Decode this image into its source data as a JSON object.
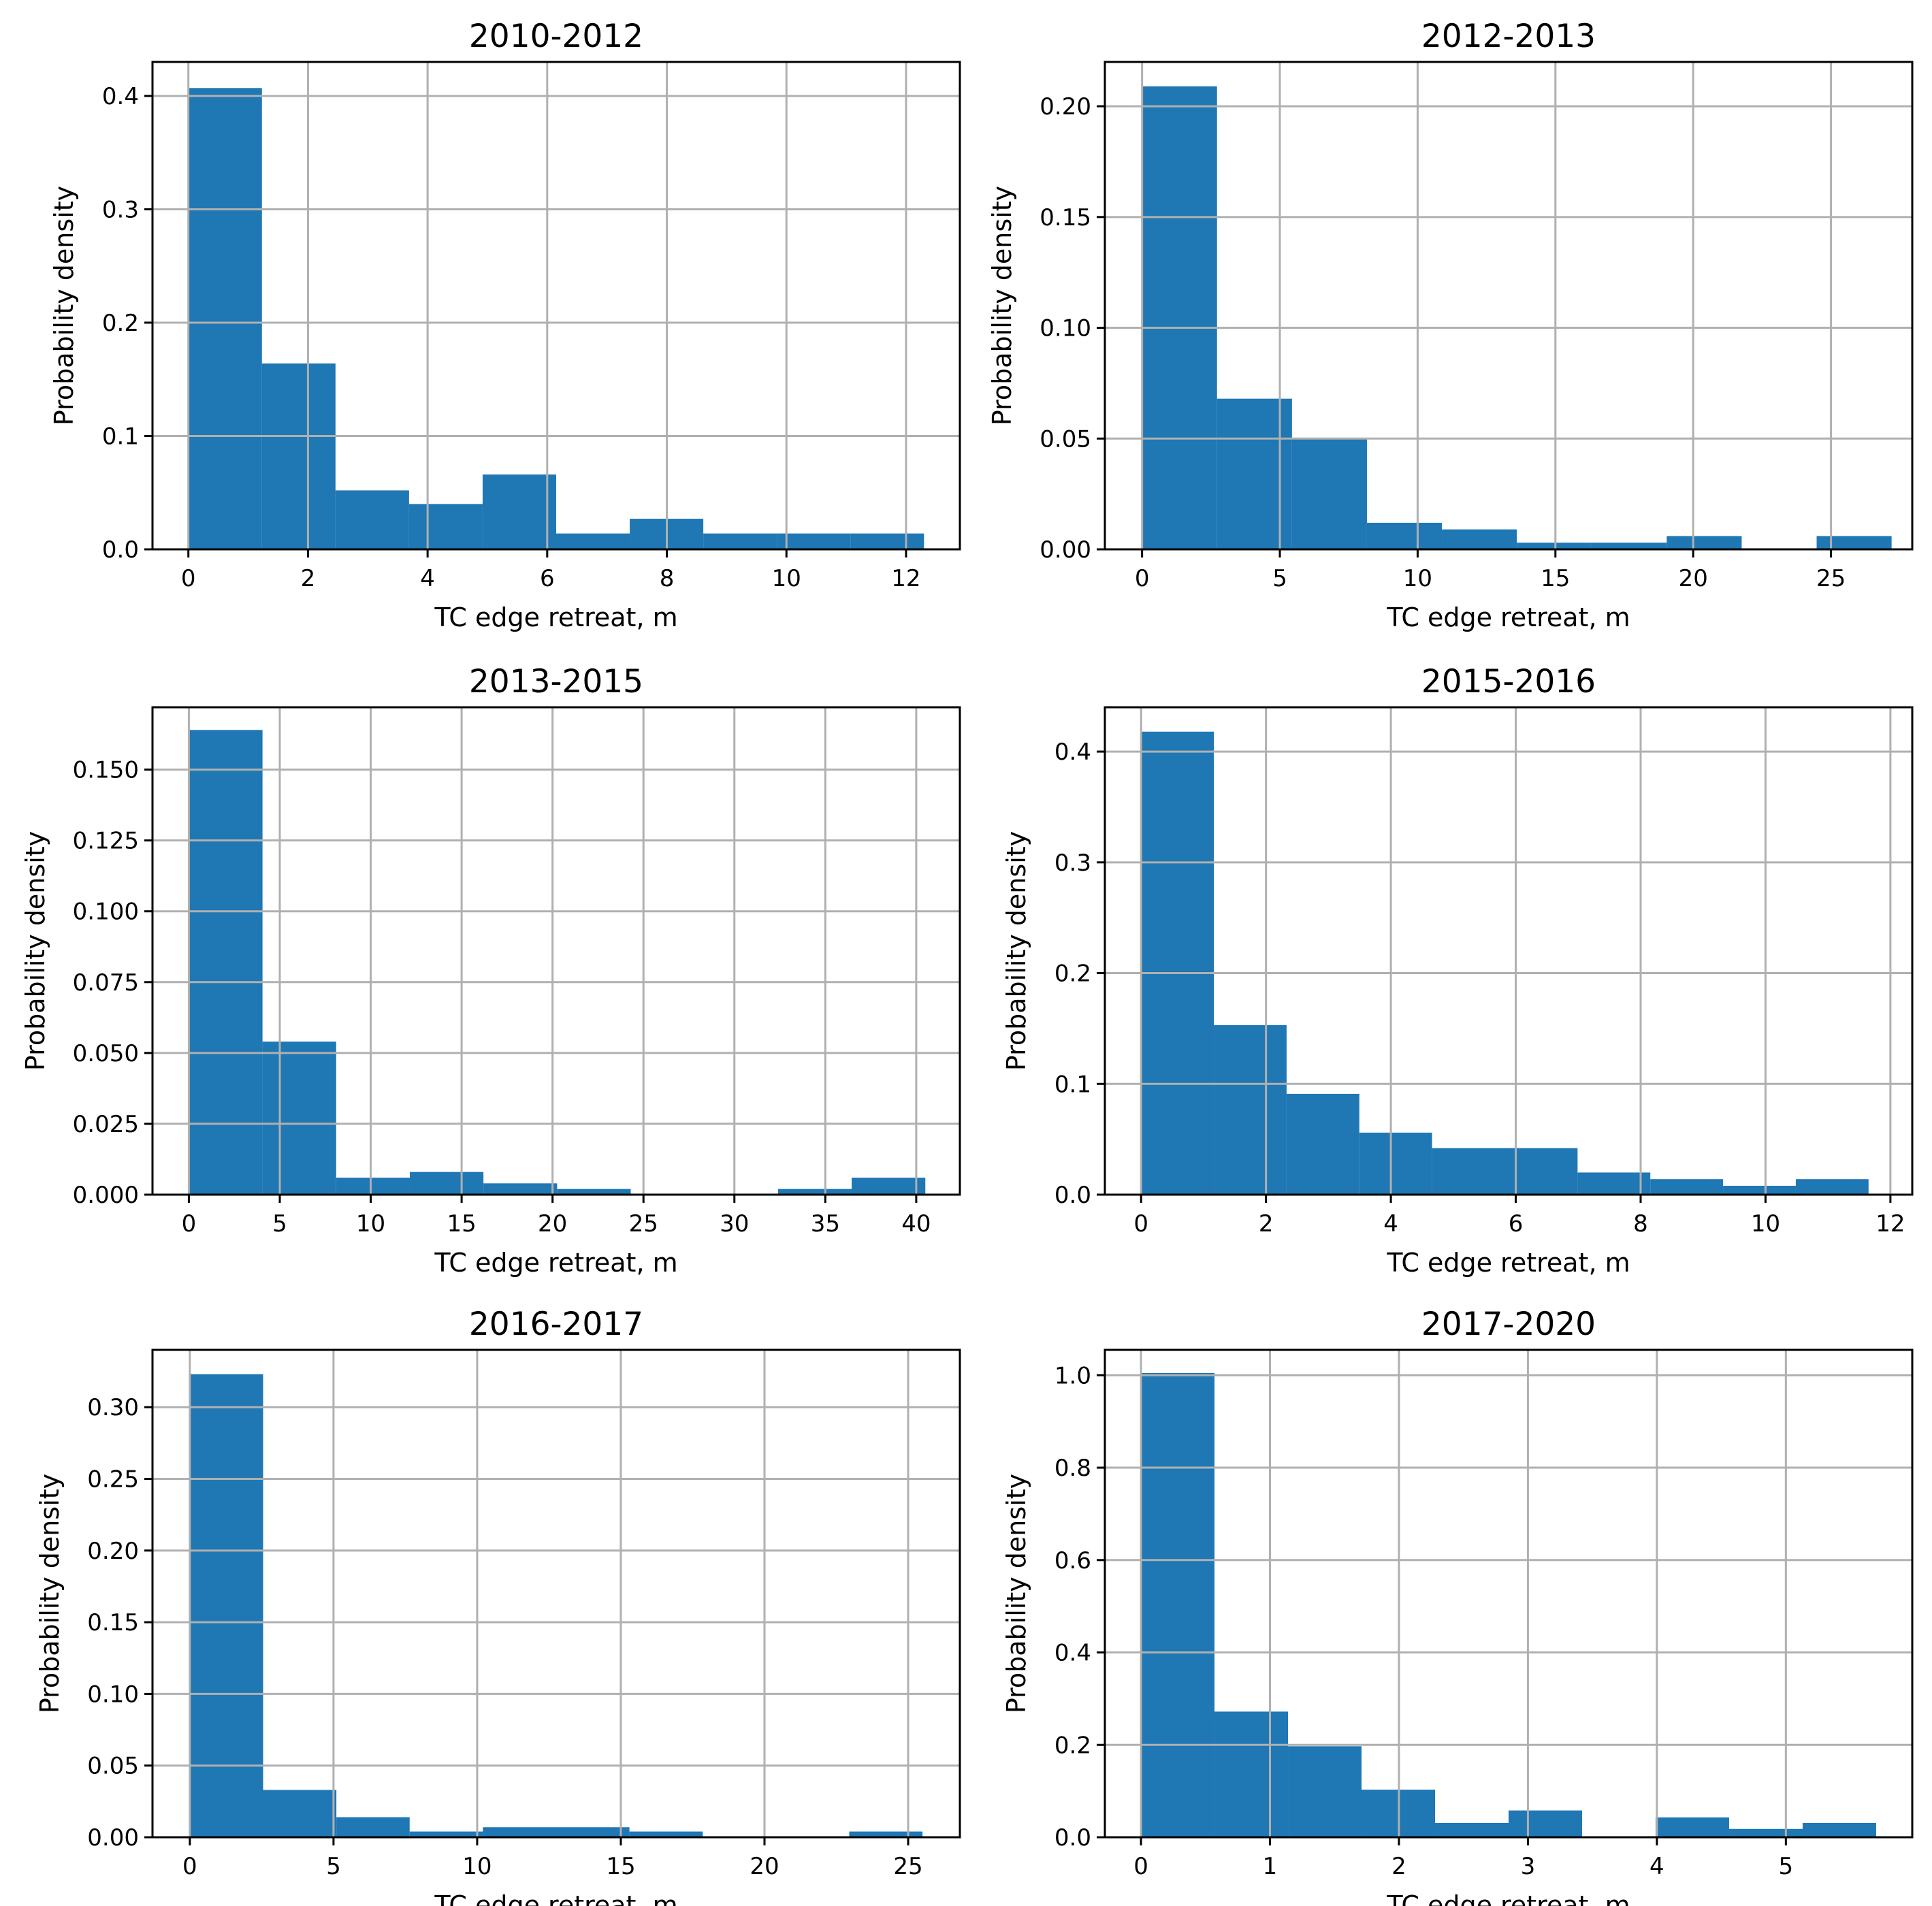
{
  "colors": {
    "bar": "#1f77b4",
    "grid": "#b0b0b0"
  },
  "chart_data": [
    {
      "type": "bar",
      "title": "2010-2012",
      "xlabel": "TC edge retreat, m",
      "ylabel": "Probability density",
      "bin_edges": [
        0,
        1.23,
        2.46,
        3.69,
        4.92,
        6.15,
        7.38,
        8.61,
        9.84,
        11.07,
        12.3
      ],
      "values": [
        0.407,
        0.164,
        0.052,
        0.04,
        0.066,
        0.014,
        0.027,
        0.014,
        0.014,
        0.014
      ],
      "xlim": [
        -0.6,
        12.9
      ],
      "ylim": [
        0,
        0.43
      ],
      "xticks": [
        0,
        2,
        4,
        6,
        8,
        10,
        12
      ],
      "xtick_labels": [
        "0",
        "2",
        "4",
        "6",
        "8",
        "10",
        "12"
      ],
      "yticks": [
        0,
        0.1,
        0.2,
        0.3,
        0.4
      ],
      "ytick_labels": [
        "0.0",
        "0.1",
        "0.2",
        "0.3",
        "0.4"
      ],
      "grid": true
    },
    {
      "type": "bar",
      "title": "2012-2013",
      "xlabel": "TC edge retreat, m",
      "ylabel": "Probability density",
      "bin_edges": [
        0,
        2.72,
        5.44,
        8.16,
        10.88,
        13.6,
        16.32,
        19.04,
        21.76,
        24.48,
        27.2
      ],
      "values": [
        0.209,
        0.068,
        0.05,
        0.012,
        0.009,
        0.003,
        0.003,
        0.006,
        0.0,
        0.006
      ],
      "xlim": [
        -1.35,
        27.95
      ],
      "ylim": [
        0,
        0.22
      ],
      "xticks": [
        0,
        5,
        10,
        15,
        20,
        25
      ],
      "xtick_labels": [
        "0",
        "5",
        "10",
        "15",
        "20",
        "25"
      ],
      "yticks": [
        0,
        0.05,
        0.1,
        0.15,
        0.2
      ],
      "ytick_labels": [
        "0.00",
        "0.05",
        "0.10",
        "0.15",
        "0.20"
      ],
      "grid": true
    },
    {
      "type": "bar",
      "title": "2013-2015",
      "xlabel": "TC edge retreat, m",
      "ylabel": "Probability density",
      "bin_edges": [
        0,
        4.05,
        8.1,
        12.15,
        16.2,
        20.25,
        24.3,
        28.35,
        32.4,
        36.45,
        40.5
      ],
      "values": [
        0.164,
        0.054,
        0.006,
        0.008,
        0.004,
        0.002,
        0.0,
        0.0,
        0.002,
        0.006
      ],
      "xlim": [
        -2.0,
        42.4
      ],
      "ylim": [
        0,
        0.172
      ],
      "xticks": [
        0,
        5,
        10,
        15,
        20,
        25,
        30,
        35,
        40
      ],
      "xtick_labels": [
        "0",
        "5",
        "10",
        "15",
        "20",
        "25",
        "30",
        "35",
        "40"
      ],
      "yticks": [
        0,
        0.025,
        0.05,
        0.075,
        0.1,
        0.125,
        0.15
      ],
      "ytick_labels": [
        "0.000",
        "0.025",
        "0.050",
        "0.075",
        "0.100",
        "0.125",
        "0.150"
      ],
      "grid": true
    },
    {
      "type": "bar",
      "title": "2015-2016",
      "xlabel": "TC edge retreat, m",
      "ylabel": "Probability density",
      "bin_edges": [
        0,
        1.165,
        2.33,
        3.495,
        4.66,
        5.825,
        6.99,
        8.155,
        9.32,
        10.485,
        11.65
      ],
      "values": [
        0.418,
        0.153,
        0.091,
        0.056,
        0.042,
        0.042,
        0.02,
        0.014,
        0.008,
        0.014
      ],
      "xlim": [
        -0.58,
        12.35
      ],
      "ylim": [
        0,
        0.44
      ],
      "xticks": [
        0,
        2,
        4,
        6,
        8,
        10,
        12
      ],
      "xtick_labels": [
        "0",
        "2",
        "4",
        "6",
        "8",
        "10",
        "12"
      ],
      "yticks": [
        0,
        0.1,
        0.2,
        0.3,
        0.4
      ],
      "ytick_labels": [
        "0.0",
        "0.1",
        "0.2",
        "0.3",
        "0.4"
      ],
      "grid": true
    },
    {
      "type": "bar",
      "title": "2016-2017",
      "xlabel": "TC edge retreat, m",
      "ylabel": "Probability density",
      "bin_edges": [
        0,
        2.55,
        5.1,
        7.65,
        10.2,
        12.75,
        15.3,
        17.85,
        20.4,
        22.95,
        25.5
      ],
      "values": [
        0.323,
        0.033,
        0.014,
        0.004,
        0.007,
        0.007,
        0.004,
        0.0,
        0.0,
        0.004
      ],
      "xlim": [
        -1.3,
        26.8
      ],
      "ylim": [
        0,
        0.34
      ],
      "xticks": [
        0,
        5,
        10,
        15,
        20,
        25
      ],
      "xtick_labels": [
        "0",
        "5",
        "10",
        "15",
        "20",
        "25"
      ],
      "yticks": [
        0,
        0.05,
        0.1,
        0.15,
        0.2,
        0.25,
        0.3
      ],
      "ytick_labels": [
        "0.00",
        "0.05",
        "0.10",
        "0.15",
        "0.20",
        "0.25",
        "0.30"
      ],
      "grid": true
    },
    {
      "type": "bar",
      "title": "2017-2020",
      "xlabel": "TC edge retreat, m",
      "ylabel": "Probability density",
      "bin_edges": [
        0,
        0.57,
        1.14,
        1.71,
        2.28,
        2.85,
        3.42,
        3.99,
        4.56,
        5.13,
        5.7
      ],
      "values": [
        1.005,
        0.272,
        0.197,
        0.103,
        0.031,
        0.058,
        0.0,
        0.043,
        0.018,
        0.031
      ],
      "xlim": [
        -0.28,
        5.98
      ],
      "ylim": [
        0,
        1.055
      ],
      "xticks": [
        0,
        1,
        2,
        3,
        4,
        5
      ],
      "xtick_labels": [
        "0",
        "1",
        "2",
        "3",
        "4",
        "5"
      ],
      "yticks": [
        0,
        0.2,
        0.4,
        0.6,
        0.8,
        1.0
      ],
      "ytick_labels": [
        "0.0",
        "0.2",
        "0.4",
        "0.6",
        "0.8",
        "1.0"
      ],
      "grid": true
    }
  ]
}
